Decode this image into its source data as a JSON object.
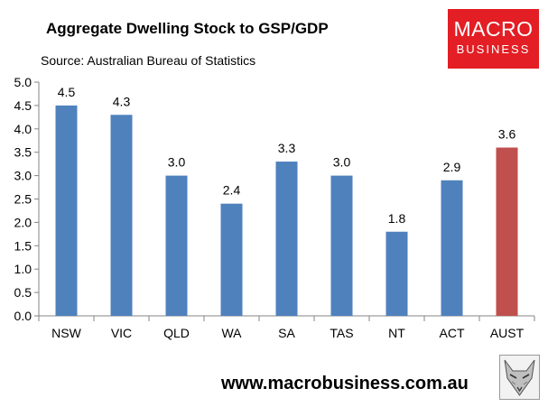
{
  "header": {
    "title": "Aggregate Dwelling Stock to GSP/GDP",
    "source": "Source: Australian Bureau of Statistics"
  },
  "logo": {
    "line1": "MACRO",
    "line2": "BUSINESS",
    "color": "#e31e24"
  },
  "footer": {
    "website": "www.macrobusiness.com.au",
    "icon": "fox-icon"
  },
  "chart_data": {
    "type": "bar",
    "categories": [
      "NSW",
      "VIC",
      "QLD",
      "WA",
      "SA",
      "TAS",
      "NT",
      "ACT",
      "AUST"
    ],
    "values": [
      4.5,
      4.3,
      3.0,
      2.4,
      3.3,
      3.0,
      1.8,
      2.9,
      3.6
    ],
    "data_labels": [
      "4.5",
      "4.3",
      "3.0",
      "2.4",
      "3.3",
      "3.0",
      "1.8",
      "2.9",
      "3.6"
    ],
    "ylim": [
      0,
      5
    ],
    "yticks": [
      "0.0",
      "0.5",
      "1.0",
      "1.5",
      "2.0",
      "2.5",
      "3.0",
      "3.5",
      "4.0",
      "4.5",
      "5.0"
    ],
    "title": "Aggregate Dwelling Stock to GSP/GDP",
    "xlabel": "",
    "ylabel": "",
    "grid": false,
    "colors": {
      "bar": "#4f81bd",
      "highlight": "#c0504d",
      "highlight_category": "AUST"
    }
  }
}
